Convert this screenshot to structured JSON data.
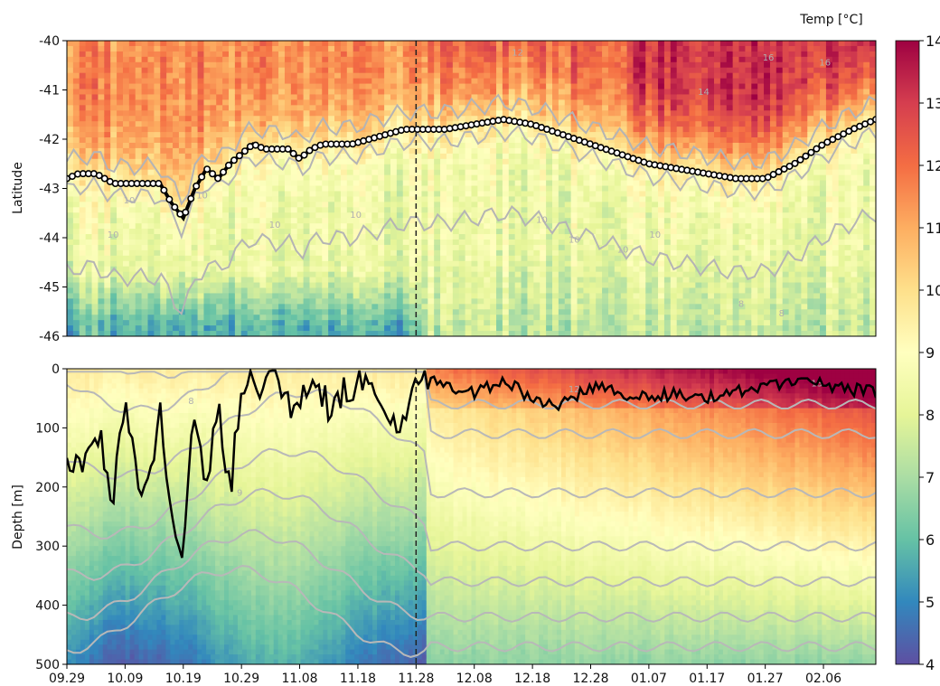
{
  "chart_data": [
    {
      "type": "heatmap",
      "panel": "top",
      "ylabel": "Latitude",
      "yticks": [
        -40,
        -41,
        -42,
        -43,
        -44,
        -45,
        -46
      ],
      "ylim": [
        -46,
        -40
      ],
      "xlim": [
        "09.29",
        "02.15"
      ],
      "vertical_marker": "11.28",
      "series": [
        {
          "name": "track",
          "x": [
            "09.29",
            "10.01",
            "10.04",
            "10.07",
            "10.10",
            "10.13",
            "10.15",
            "10.17",
            "10.19",
            "10.21",
            "10.23",
            "10.25",
            "10.27",
            "10.29",
            "10.31",
            "11.02",
            "11.04",
            "11.06",
            "11.08",
            "11.10",
            "11.12",
            "11.14",
            "11.17",
            "11.20",
            "11.23",
            "11.26",
            "11.28",
            "12.03",
            "12.08",
            "12.13",
            "12.18",
            "12.23",
            "12.28",
            "01.02",
            "01.07",
            "01.12",
            "01.17",
            "01.22",
            "01.27",
            "02.01",
            "02.06",
            "02.11",
            "02.15"
          ],
          "y": [
            -42.8,
            -42.7,
            -42.7,
            -42.9,
            -42.9,
            -42.9,
            -42.9,
            -43.3,
            -43.6,
            -43.0,
            -42.6,
            -42.8,
            -42.5,
            -42.3,
            -42.1,
            -42.2,
            -42.2,
            -42.2,
            -42.4,
            -42.2,
            -42.1,
            -42.1,
            -42.1,
            -42.0,
            -41.9,
            -41.8,
            -41.8,
            -41.8,
            -41.7,
            -41.6,
            -41.7,
            -41.9,
            -42.1,
            -42.3,
            -42.5,
            -42.6,
            -42.7,
            -42.8,
            -42.8,
            -42.5,
            -42.1,
            -41.8,
            -41.6
          ]
        }
      ],
      "contour_labels": [
        "12",
        "14",
        "16",
        "16",
        "10",
        "10",
        "10",
        "10",
        "10",
        "10",
        "10",
        "10",
        "10",
        "8",
        "8"
      ]
    },
    {
      "type": "heatmap",
      "panel": "bottom",
      "ylabel": "Depth [m]",
      "yticks": [
        0,
        100,
        200,
        300,
        400,
        500
      ],
      "ylim": [
        500,
        0
      ],
      "xticks": [
        "09.29",
        "10.09",
        "10.19",
        "10.29",
        "11.08",
        "11.18",
        "11.28",
        "12.08",
        "12.18",
        "12.28",
        "01.07",
        "01.17",
        "01.27",
        "02.06"
      ],
      "vertical_marker": "11.28",
      "series": [
        {
          "name": "mixed layer depth",
          "x": [
            "09.29",
            "10.02",
            "10.05",
            "10.07",
            "10.09",
            "10.11",
            "10.13",
            "10.15",
            "10.17",
            "10.19",
            "10.21",
            "10.23",
            "10.25",
            "10.27",
            "10.29",
            "11.01",
            "11.04",
            "11.07",
            "11.10",
            "11.13",
            "11.16",
            "11.19",
            "11.22",
            "11.25",
            "11.28",
            "12.03",
            "12.08",
            "12.13",
            "12.18",
            "12.23",
            "12.28",
            "01.02",
            "01.07",
            "01.12",
            "01.17",
            "01.22",
            "01.27",
            "02.01",
            "02.06",
            "02.11",
            "02.15"
          ],
          "y": [
            165,
            150,
            130,
            220,
            60,
            170,
            210,
            40,
            270,
            300,
            60,
            200,
            70,
            210,
            20,
            30,
            10,
            70,
            20,
            60,
            30,
            20,
            70,
            100,
            10,
            30,
            40,
            20,
            50,
            60,
            30,
            40,
            50,
            40,
            50,
            40,
            30,
            20,
            25,
            35,
            40
          ]
        }
      ],
      "contour_labels": [
        "13",
        "12",
        "9",
        "8"
      ]
    }
  ],
  "colorbar": {
    "title": "Temp [°C]",
    "ticks": [
      4,
      5,
      6,
      7,
      8,
      9,
      10,
      11,
      12,
      13,
      14
    ],
    "colors": [
      "#5e4fa2",
      "#3288bd",
      "#66c2a5",
      "#abdda4",
      "#e6f598",
      "#ffffbf",
      "#fee08b",
      "#fdae61",
      "#f46d43",
      "#d53e4f",
      "#9e0142"
    ]
  },
  "labels": {
    "top_ylabel": "Latitude",
    "bottom_ylabel": "Depth [m]",
    "colorbar_title": "Temp [°C]"
  }
}
